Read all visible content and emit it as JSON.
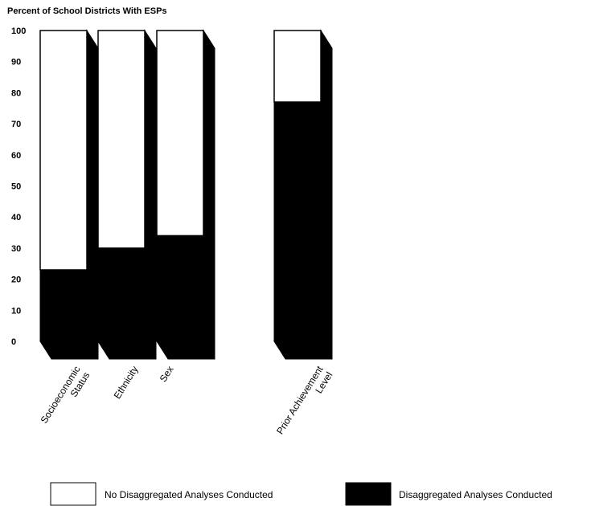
{
  "chart_data": {
    "type": "bar",
    "stacked": true,
    "title": "Percent of School Districts With ESPs",
    "ylim": [
      0,
      100
    ],
    "yticks": [
      0,
      10,
      20,
      30,
      40,
      50,
      60,
      70,
      80,
      90,
      100
    ],
    "categories": [
      "Socioeconomic Status",
      "Ethnicity",
      "Sex",
      "Prior Achievement Level"
    ],
    "category_labels": [
      [
        "Socioeconomic",
        "Status"
      ],
      [
        "Ethnicity"
      ],
      [
        "Sex"
      ],
      [
        "Prior Achievement",
        "Level"
      ]
    ],
    "series": [
      {
        "name": "Disaggregated Analyses Conducted",
        "values": [
          23,
          30,
          34,
          77
        ],
        "color": "#000000"
      },
      {
        "name": "No Disaggregated Analyses Conducted",
        "values": [
          77,
          70,
          66,
          23
        ],
        "color": "#ffffff"
      }
    ],
    "legend": {
      "position": "bottom",
      "items": [
        {
          "label": "No Disaggregated Analyses Conducted",
          "color": "#ffffff"
        },
        {
          "label": "Disaggregated Analyses Conducted",
          "color": "#000000"
        }
      ]
    },
    "grid": false
  }
}
